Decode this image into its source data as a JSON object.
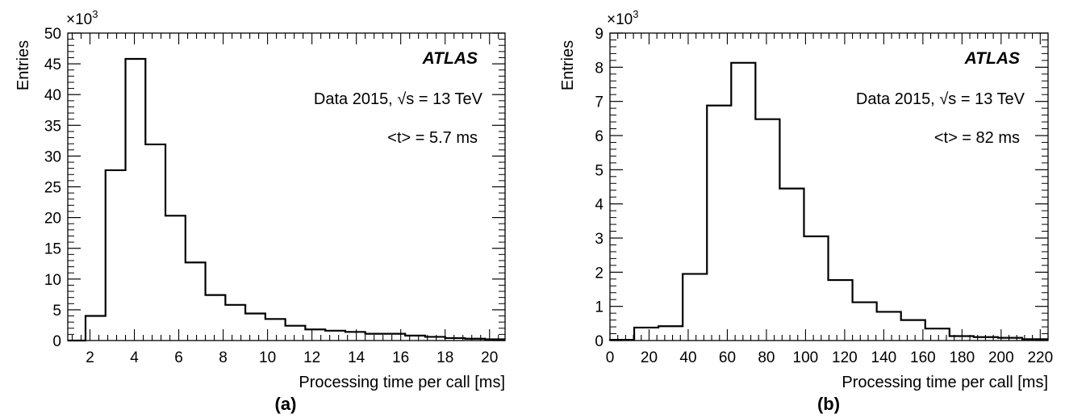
{
  "chart_data": [
    {
      "type": "bar",
      "panel_label": "(a)",
      "xlabel": "Processing time per call [ms]",
      "ylabel": "Entries",
      "y_multiplier": "×10",
      "y_multiplier_exp": "3",
      "xlim": [
        1,
        20.7
      ],
      "ylim": [
        0,
        50
      ],
      "x_ticks": [
        2,
        4,
        6,
        8,
        10,
        12,
        14,
        16,
        18,
        20
      ],
      "y_ticks": [
        0,
        5,
        10,
        15,
        20,
        25,
        30,
        35,
        40,
        45,
        50
      ],
      "experiment": "ATLAS",
      "annotation_data_prefix": "Data 2015, ",
      "annotation_sqrt": "√",
      "annotation_data_suffix": "s = 13 TeV",
      "annotation_mean": "<t> = 5.7 ms",
      "bin_edges": [
        1.0,
        1.8,
        2.7,
        3.6,
        4.5,
        5.4,
        6.3,
        7.2,
        8.1,
        9.0,
        9.9,
        10.8,
        11.7,
        12.6,
        13.5,
        14.4,
        15.3,
        16.2,
        17.1,
        18.0,
        18.9,
        19.8,
        20.7
      ],
      "values": [
        0.0,
        4.0,
        27.7,
        45.8,
        31.9,
        20.3,
        12.7,
        7.4,
        5.8,
        4.4,
        3.5,
        2.4,
        1.8,
        1.6,
        1.4,
        1.1,
        1.1,
        0.8,
        0.6,
        0.4,
        0.3,
        0.2
      ]
    },
    {
      "type": "bar",
      "panel_label": "(b)",
      "xlabel": "Processing time per call [ms]",
      "ylabel": "Entries",
      "y_multiplier": "×10",
      "y_multiplier_exp": "3",
      "xlim": [
        0,
        224
      ],
      "ylim": [
        0,
        9
      ],
      "x_ticks": [
        0,
        20,
        40,
        60,
        80,
        100,
        120,
        140,
        160,
        180,
        200,
        220
      ],
      "y_ticks": [
        0,
        1,
        2,
        3,
        4,
        5,
        6,
        7,
        8,
        9
      ],
      "experiment": "ATLAS",
      "annotation_data_prefix": "Data 2015, ",
      "annotation_sqrt": "√",
      "annotation_data_suffix": "s = 13 TeV",
      "annotation_mean": "<t> = 82 ms",
      "bin_edges": [
        0,
        12.4,
        24.8,
        37.2,
        49.6,
        62.0,
        74.4,
        86.8,
        99.2,
        111.6,
        124.0,
        136.4,
        148.8,
        161.2,
        173.6,
        186.0,
        198.4,
        210.8,
        224
      ],
      "values": [
        0.02,
        0.38,
        0.42,
        1.95,
        6.88,
        8.13,
        6.48,
        4.45,
        3.05,
        1.77,
        1.12,
        0.84,
        0.6,
        0.35,
        0.13,
        0.1,
        0.08,
        0.04
      ]
    }
  ]
}
